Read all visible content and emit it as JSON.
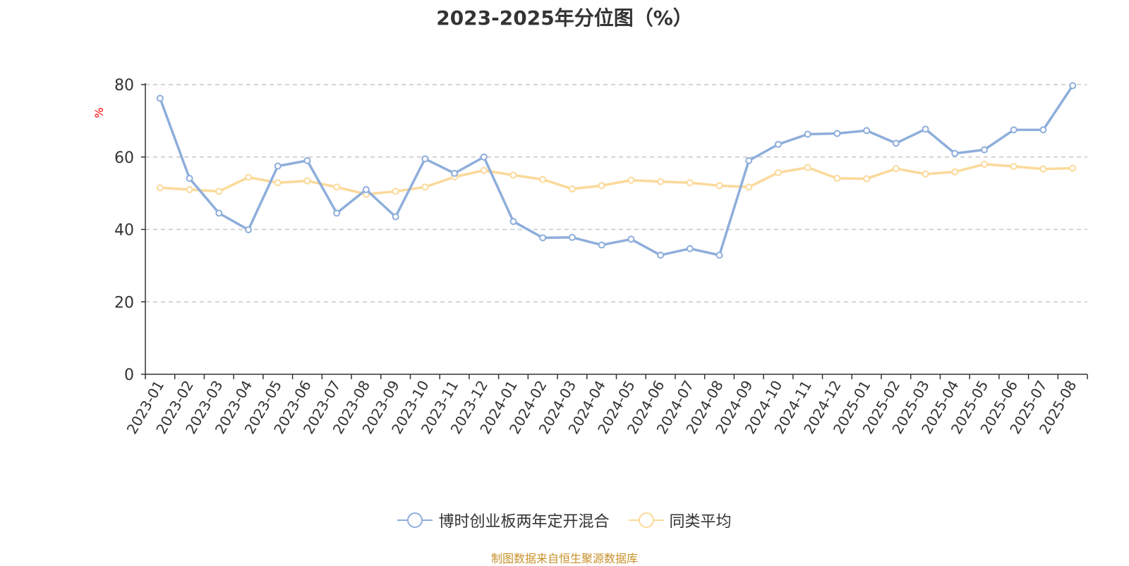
{
  "chart_data": {
    "type": "line",
    "title": "2023-2025年分位图（%）",
    "ylabel": "%",
    "xlabel": "",
    "ylim": [
      0,
      80
    ],
    "yticks": [
      0,
      20,
      40,
      60,
      80
    ],
    "grid": true,
    "legend_position": "bottom",
    "categories": [
      "2023-01",
      "2023-02",
      "2023-03",
      "2023-04",
      "2023-05",
      "2023-06",
      "2023-07",
      "2023-08",
      "2023-09",
      "2023-10",
      "2023-11",
      "2023-12",
      "2024-01",
      "2024-02",
      "2024-03",
      "2024-04",
      "2024-05",
      "2024-06",
      "2024-07",
      "2024-08",
      "2024-09",
      "2024-10",
      "2024-11",
      "2024-12",
      "2025-01",
      "2025-02",
      "2025-03",
      "2025-04",
      "2025-05",
      "2025-06",
      "2025-07",
      "2025-08"
    ],
    "series": [
      {
        "name": "博时创业板两年定开混合",
        "color": "#8eaedb",
        "values": [
          76.2,
          54.1,
          44.5,
          39.9,
          57.5,
          59.0,
          44.5,
          51.0,
          43.5,
          59.5,
          55.5,
          60.0,
          42.2,
          37.7,
          37.8,
          35.7,
          37.3,
          32.9,
          34.7,
          32.9,
          59.0,
          63.5,
          66.3,
          66.5,
          67.3,
          63.8,
          67.7,
          61.0,
          62.0,
          67.5,
          67.5,
          79.7
        ]
      },
      {
        "name": "同类平均",
        "color": "#fbd99a",
        "values": [
          51.5,
          51.0,
          50.5,
          54.4,
          52.9,
          53.4,
          51.7,
          49.7,
          50.5,
          51.7,
          54.5,
          56.3,
          55.0,
          53.8,
          51.2,
          52.1,
          53.6,
          53.2,
          52.9,
          52.1,
          51.7,
          55.7,
          57.1,
          54.1,
          54.0,
          56.8,
          55.3,
          55.9,
          58.0,
          57.4,
          56.7,
          56.9
        ]
      }
    ]
  },
  "source_note": "制图数据来自恒生聚源数据库"
}
